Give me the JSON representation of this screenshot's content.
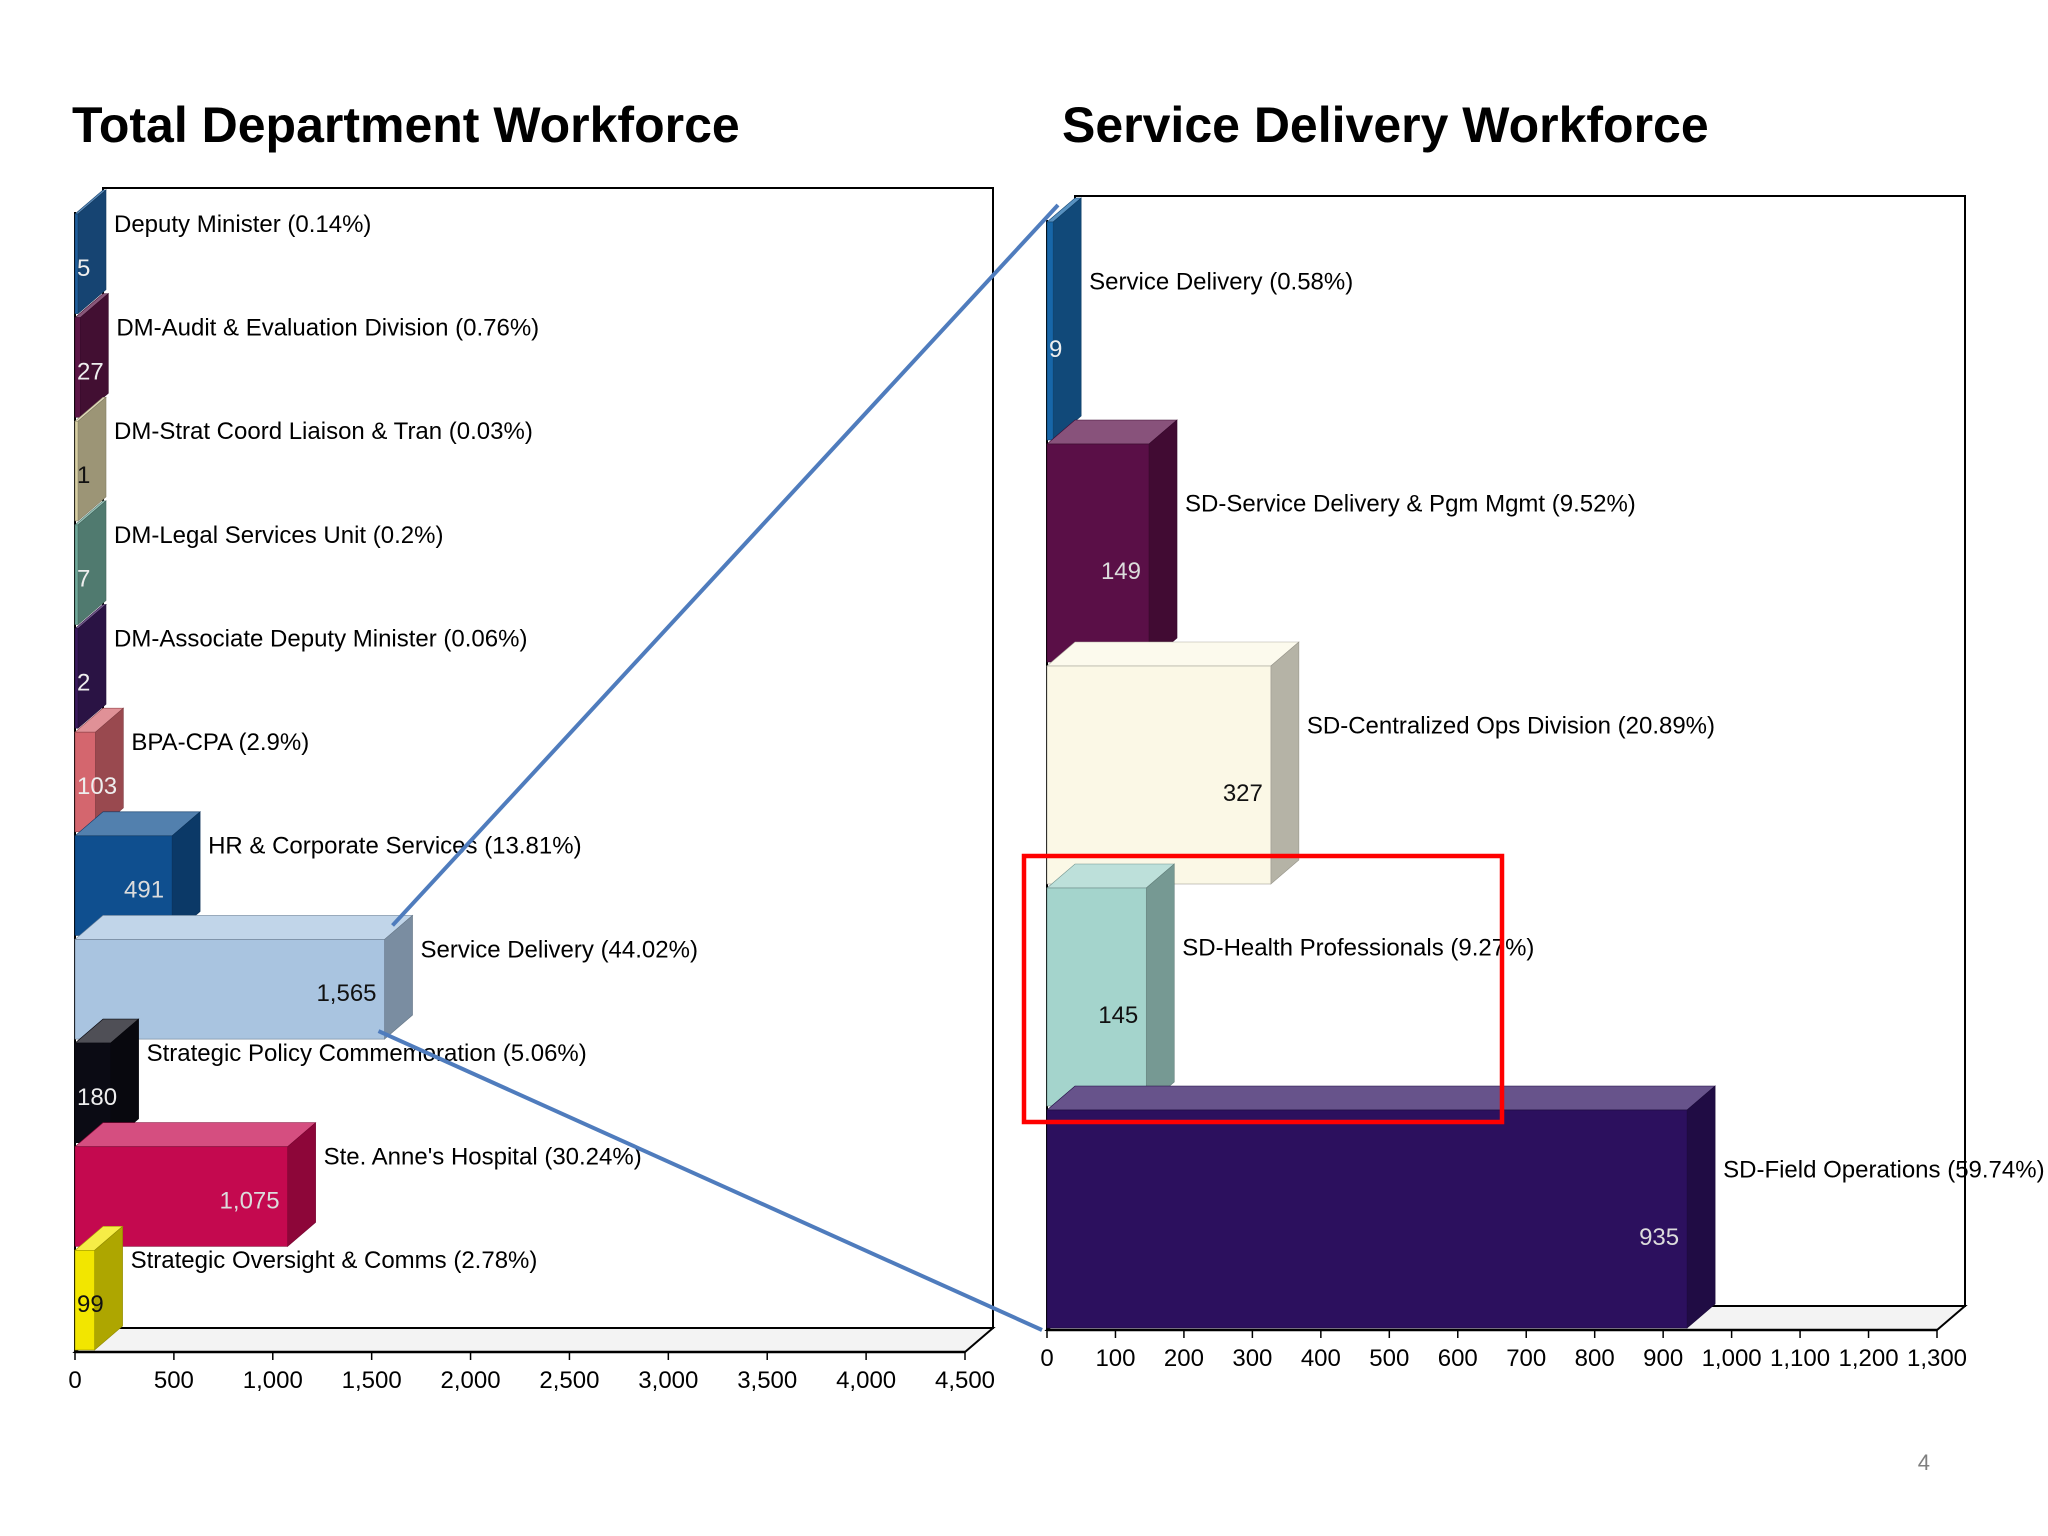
{
  "page_number": "4",
  "colors": {
    "connector": "#4f7cbd",
    "highlight": "#ff0000"
  },
  "chart_data": [
    {
      "type": "bar",
      "orientation": "horizontal",
      "title": "Total Department Workforce",
      "xlim": [
        0,
        4500
      ],
      "ticks": [
        "0",
        "500",
        "1,000",
        "1,500",
        "2,000",
        "2,500",
        "3,000",
        "3,500",
        "4,000",
        "4,500"
      ],
      "categories": [
        "Deputy Minister (0.14%)",
        "DM-Audit & Evaluation Division (0.76%)",
        "DM-Strat Coord Liaison & Tran (0.03%)",
        "DM-Legal Services Unit (0.2%)",
        "DM-Associate Deputy Minister (0.06%)",
        "BPA-CPA (2.9%)",
        "HR & Corporate Services (13.81%)",
        "Service Delivery (44.02%)",
        "Strategic Policy Commemoration (5.06%)",
        "Ste. Anne's Hospital (30.24%)",
        "Strategic Oversight & Comms (2.78%)"
      ],
      "values": [
        5,
        27,
        1,
        7,
        2,
        103,
        491,
        1565,
        180,
        1075,
        99
      ],
      "value_labels": [
        "5",
        "27",
        "1",
        "7",
        "2",
        "103",
        "491",
        "1,565",
        "180",
        "1,075",
        "99"
      ],
      "colors": [
        "#1f5f9e",
        "#5b1546",
        "#d8cfa4",
        "#6fa99a",
        "#3b1a5e",
        "#d4666e",
        "#0f4f8f",
        "#a9c4e0",
        "#0b0b14",
        "#c4094f",
        "#f2e600"
      ],
      "grid": false
    },
    {
      "type": "bar",
      "orientation": "horizontal",
      "title": "Service Delivery Workforce",
      "xlim": [
        0,
        1300
      ],
      "ticks": [
        "0",
        "100",
        "200",
        "300",
        "400",
        "500",
        "600",
        "700",
        "800",
        "900",
        "1,000",
        "1,100",
        "1,200",
        "1,300"
      ],
      "categories": [
        "Service Delivery (0.58%)",
        "SD-Service Delivery & Pgm Mgmt (9.52%)",
        "SD-Centralized Ops Division (20.89%)",
        "SD-Health Professionals (9.27%)",
        "SD-Field Operations (59.74%)"
      ],
      "values": [
        9,
        149,
        327,
        145,
        935
      ],
      "value_labels": [
        "9",
        "149",
        "327",
        "145",
        "935"
      ],
      "colors": [
        "#1766a8",
        "#5a0f47",
        "#fbf8e6",
        "#a4d4cc",
        "#2c105e"
      ],
      "highlighted_category": "SD-Health Professionals (9.27%)",
      "grid": false
    }
  ]
}
